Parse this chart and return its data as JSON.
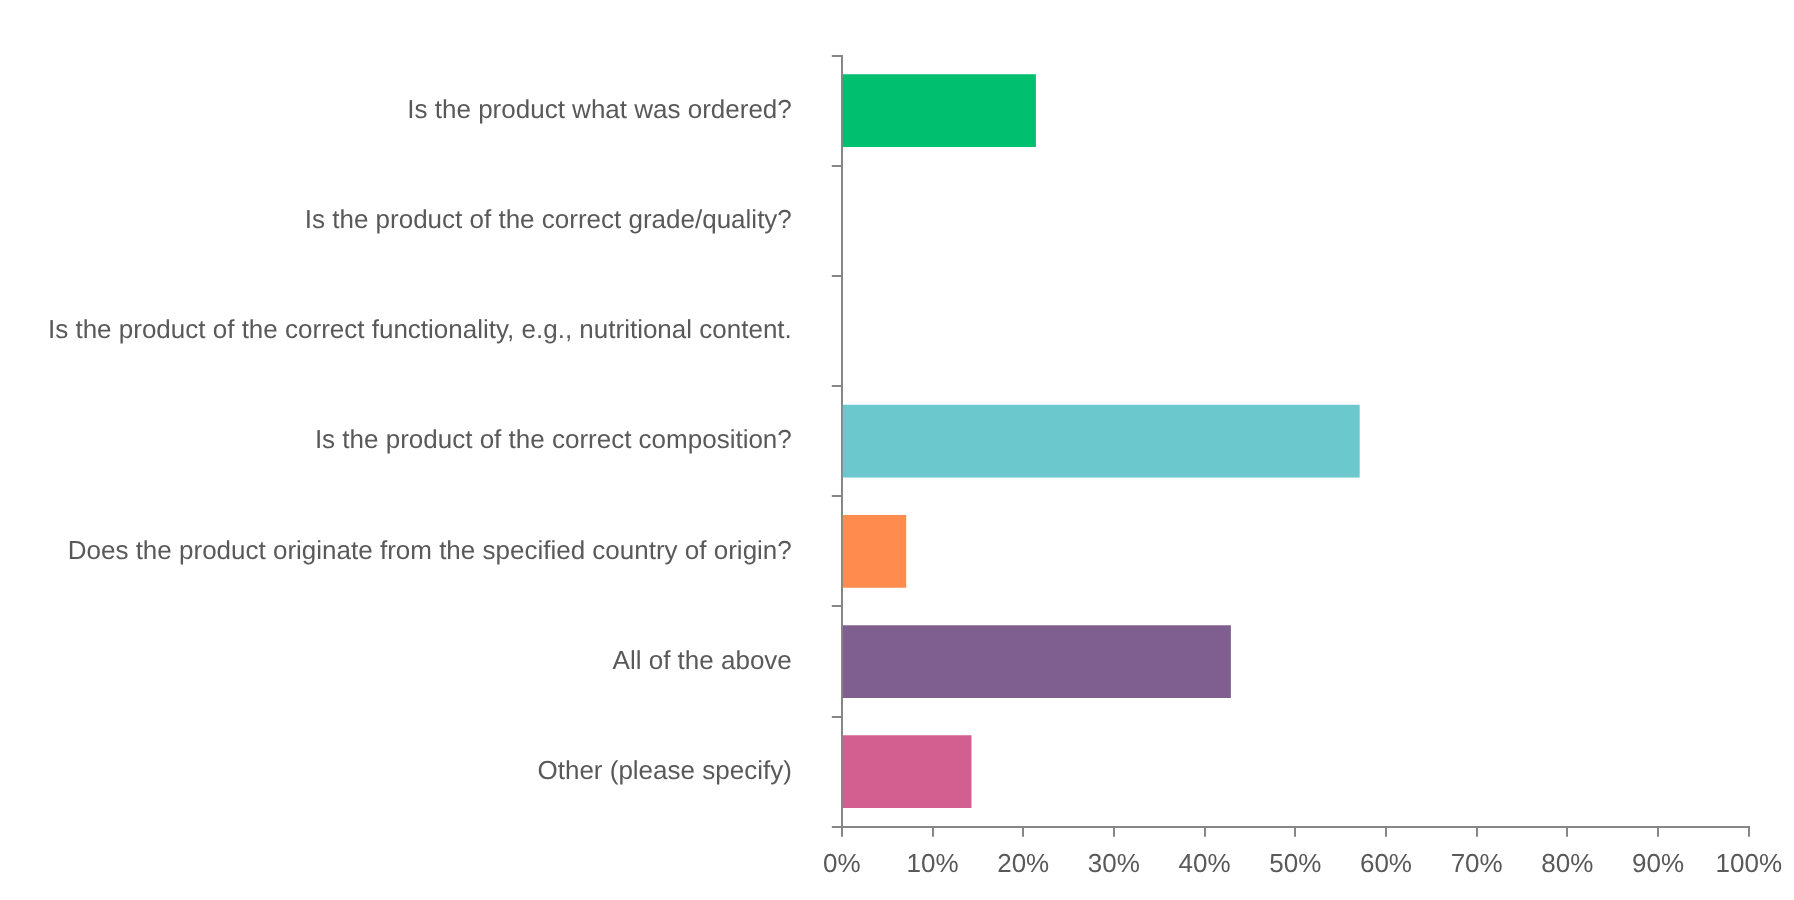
{
  "chart_data": {
    "type": "bar",
    "orientation": "horizontal",
    "categories": [
      "Is the product what was ordered?",
      "Is the product of the correct grade/quality?",
      "Is the product of the correct functionality, e.g., nutritional content.",
      "Is the product of the correct composition?",
      "Does the product originate from the specified country of origin?",
      "All of the above",
      "Other (please specify)"
    ],
    "values": [
      21.4,
      0,
      0,
      57.1,
      7.1,
      42.9,
      14.3
    ],
    "colors": [
      "#00bf6f",
      "#00bf6f",
      "#00bf6f",
      "#6bc8cd",
      "#ff8b4f",
      "#7f5f8f",
      "#d25f90"
    ],
    "xlim": [
      0,
      100
    ],
    "xticks": [
      {
        "value": 0,
        "label": "0%"
      },
      {
        "value": 10,
        "label": "10%"
      },
      {
        "value": 20,
        "label": "20%"
      },
      {
        "value": 30,
        "label": "30%"
      },
      {
        "value": 40,
        "label": "40%"
      },
      {
        "value": 50,
        "label": "50%"
      },
      {
        "value": 60,
        "label": "60%"
      },
      {
        "value": 70,
        "label": "70%"
      },
      {
        "value": 80,
        "label": "80%"
      },
      {
        "value": 90,
        "label": "90%"
      },
      {
        "value": 100,
        "label": "100%"
      }
    ],
    "grid": false,
    "legend": false
  }
}
